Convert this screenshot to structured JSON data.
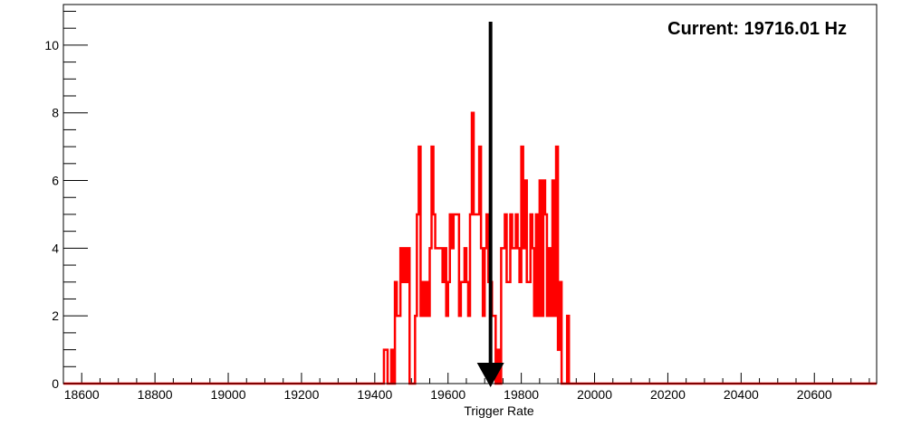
{
  "chart_data": {
    "type": "histogram",
    "xlabel": "Trigger Rate",
    "ylabel": "",
    "xlim": [
      18550,
      20770
    ],
    "ylim": [
      0,
      11.2
    ],
    "x_ticks": [
      18600,
      18800,
      19000,
      19200,
      19400,
      19600,
      19800,
      20000,
      20200,
      20400,
      20600
    ],
    "y_ticks": [
      0,
      2,
      4,
      6,
      8,
      10
    ],
    "bin_width": 5,
    "bin_start": 19405,
    "values": [
      0,
      0,
      0,
      0,
      1,
      1,
      0,
      0,
      1,
      0,
      3,
      2,
      2,
      4,
      3,
      4,
      3,
      4,
      0,
      0,
      0,
      2,
      5,
      7,
      2,
      3,
      2,
      3,
      2,
      4,
      7,
      5,
      4,
      4,
      4,
      4,
      3,
      4,
      2,
      3,
      5,
      4,
      5,
      5,
      5,
      2,
      3,
      3,
      4,
      3,
      2,
      5,
      8,
      5,
      5,
      5,
      7,
      4,
      2,
      4,
      5,
      3,
      3,
      2,
      2,
      0,
      1,
      0,
      4,
      4,
      5,
      3,
      3,
      5,
      4,
      4,
      5,
      4,
      3,
      7,
      4,
      6,
      3,
      3,
      5,
      4,
      2,
      5,
      2,
      6,
      2,
      6,
      5,
      2,
      4,
      2,
      6,
      2,
      7,
      1,
      3,
      0,
      0,
      0,
      2,
      0
    ],
    "series": [
      {
        "color": "#ff0000",
        "style": "step"
      }
    ],
    "marker_value": 19716.01,
    "marker_color": "#000000",
    "annotation": "Current: 19716.01 Hz",
    "grid": false
  }
}
